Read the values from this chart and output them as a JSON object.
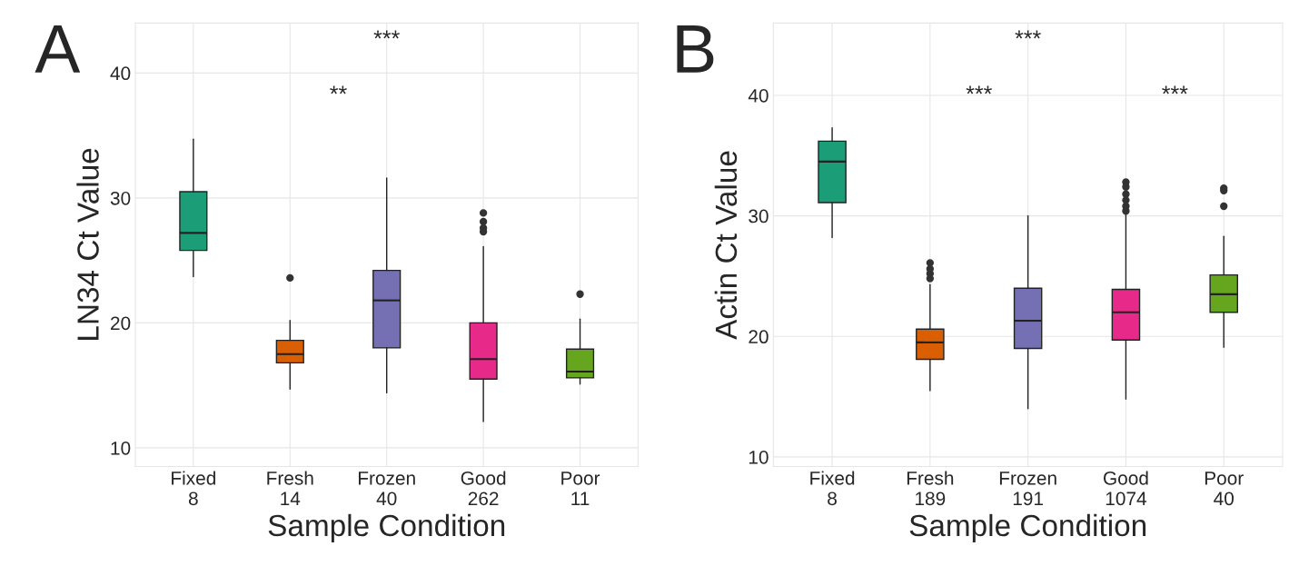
{
  "chart_data": [
    {
      "type": "box",
      "title": "A",
      "xlabel": "Sample Condition",
      "ylabel": "LN34 Ct Value",
      "categories": [
        "Fixed\n8",
        "Fresh\n14",
        "Frozen\n40",
        "Good\n262",
        "Poor\n11"
      ],
      "colors": [
        "#1b9e77",
        "#d95f02",
        "#7570b3",
        "#e7298a",
        "#66a61e"
      ],
      "boxes": [
        {
          "low": 23.7,
          "q1": 25.8,
          "median": 27.2,
          "q3": 30.5,
          "high": 34.7
        },
        {
          "low": 14.7,
          "q1": 16.8,
          "median": 17.5,
          "q3": 18.6,
          "high": 20.2,
          "outliers": [
            23.6
          ]
        },
        {
          "low": 14.4,
          "q1": 18.0,
          "median": 21.8,
          "q3": 24.2,
          "high": 31.6
        },
        {
          "low": 12.1,
          "q1": 15.5,
          "median": 17.1,
          "q3": 20.0,
          "high": 26.1,
          "outliers": [
            27.3,
            27.6,
            28.1,
            28.8
          ]
        },
        {
          "low": 15.1,
          "q1": 15.6,
          "median": 16.1,
          "q3": 17.9,
          "high": 20.3,
          "outliers": [
            22.3
          ]
        }
      ],
      "ylim": [
        8.5,
        44
      ],
      "yticks": [
        10,
        20,
        30,
        40
      ],
      "grid": true,
      "annotations": [
        "***",
        "**"
      ]
    },
    {
      "type": "box",
      "title": "B",
      "xlabel": "Sample Condition",
      "ylabel": "Actin Ct Value",
      "categories": [
        "Fixed\n8",
        "Fresh\n189",
        "Frozen\n191",
        "Good\n1074",
        "Poor\n40"
      ],
      "colors": [
        "#1b9e77",
        "#d95f02",
        "#7570b3",
        "#e7298a",
        "#66a61e"
      ],
      "boxes": [
        {
          "low": 28.2,
          "q1": 31.1,
          "median": 34.5,
          "q3": 36.2,
          "high": 37.3
        },
        {
          "low": 15.5,
          "q1": 18.1,
          "median": 19.5,
          "q3": 20.6,
          "high": 24.3,
          "outliers": [
            24.8,
            25.2,
            25.6,
            26.1
          ]
        },
        {
          "low": 14.0,
          "q1": 19.0,
          "median": 21.3,
          "q3": 24.0,
          "high": 30.0
        },
        {
          "low": 14.8,
          "q1": 19.7,
          "median": 22.0,
          "q3": 23.9,
          "high": 30.2,
          "outliers": [
            30.4,
            30.8,
            31.3,
            31.8,
            32.4,
            32.8
          ]
        },
        {
          "low": 19.1,
          "q1": 22.0,
          "median": 23.5,
          "q3": 25.1,
          "high": 28.3,
          "outliers": [
            30.8,
            32.1,
            32.3
          ]
        }
      ],
      "ylim": [
        9.2,
        46
      ],
      "yticks": [
        10,
        20,
        30,
        40
      ],
      "grid": true,
      "annotations": [
        "***",
        "***",
        "***"
      ]
    }
  ]
}
